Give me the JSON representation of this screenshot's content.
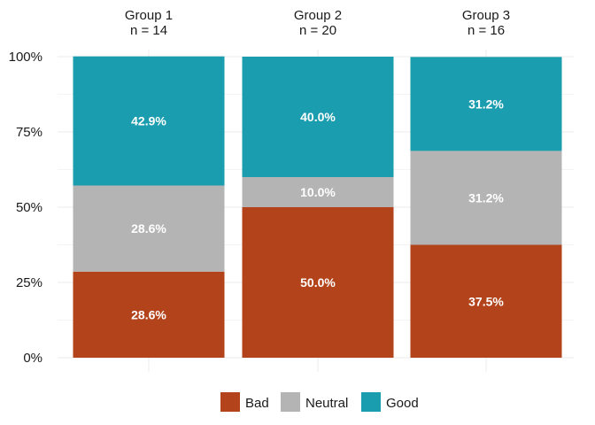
{
  "chart_data": {
    "type": "bar",
    "stacked": true,
    "orientation": "vertical",
    "categories": [
      {
        "title": "Group 1",
        "subtitle": "n = 14"
      },
      {
        "title": "Group 2",
        "subtitle": "n = 20"
      },
      {
        "title": "Group 3",
        "subtitle": "n = 16"
      }
    ],
    "series": [
      {
        "name": "Bad",
        "color": "#B3431A",
        "values": [
          28.6,
          50.0,
          37.5
        ],
        "labels": [
          "28.6%",
          "50.0%",
          "37.5%"
        ]
      },
      {
        "name": "Neutral",
        "color": "#B4B4B4",
        "values": [
          28.6,
          10.0,
          31.2
        ],
        "labels": [
          "28.6%",
          "10.0%",
          "31.2%"
        ]
      },
      {
        "name": "Good",
        "color": "#1A9DAE",
        "values": [
          42.9,
          40.0,
          31.2
        ],
        "labels": [
          "42.9%",
          "40.0%",
          "31.2%"
        ]
      }
    ],
    "ylim": [
      0,
      100
    ],
    "yticks": [
      0,
      25,
      50,
      75,
      100
    ],
    "ytick_labels": [
      "0%",
      "25%",
      "50%",
      "75%",
      "100%"
    ],
    "xlabel": "",
    "ylabel": "",
    "grid": true,
    "legend_position": "bottom",
    "data_label_color": "#FFFFFF"
  }
}
